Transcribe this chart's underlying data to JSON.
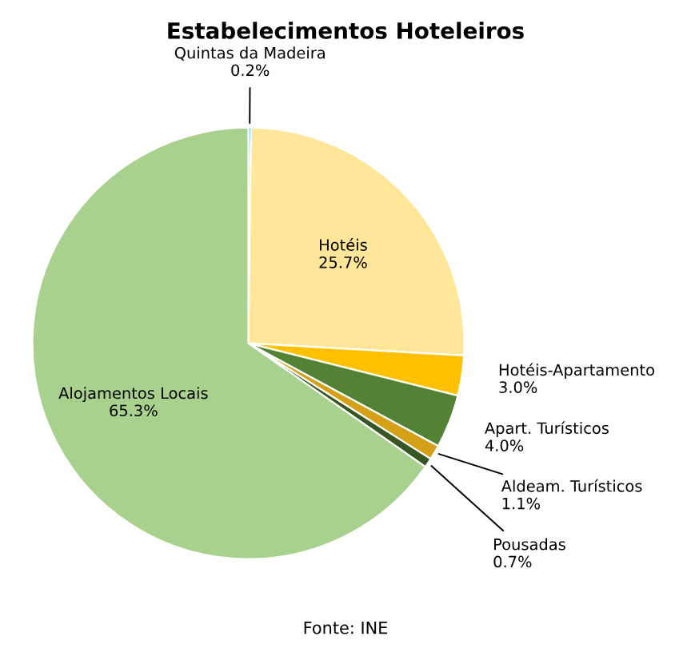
{
  "chart_data": {
    "type": "pie",
    "title": "Estabelecimentos Hoteleiros",
    "categories": [
      "Quintas da Madeira",
      "Hotéis",
      "Hotéis-Apartamento",
      "Apart. Turísticos",
      "Aldeam. Turísticos",
      "Pousadas",
      "Alojamentos Locais"
    ],
    "values": [
      0.2,
      25.7,
      3.0,
      4.0,
      1.1,
      0.7,
      65.3
    ],
    "value_labels": [
      "0.2%",
      "25.7%",
      "3.0%",
      "4.0%",
      "1.1%",
      "0.7%",
      "65.3%"
    ],
    "colors": [
      "#00b0f0",
      "#ffe699",
      "#ffc000",
      "#548235",
      "#d4a017",
      "#375623",
      "#a9d18e"
    ],
    "annotations": [
      "Fonte: INE"
    ]
  }
}
